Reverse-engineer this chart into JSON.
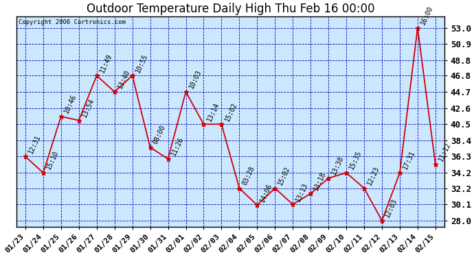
{
  "title": "Outdoor Temperature Daily High Thu Feb 16 00:00",
  "copyright": "Copyright 2006 Curtronics.com",
  "outer_bg": "#ffffff",
  "plot_bg_color": "#cce8ff",
  "line_color": "#cc0000",
  "marker_color": "#cc0000",
  "grid_color": "#0000bb",
  "x_labels": [
    "01/23",
    "01/24",
    "01/25",
    "01/26",
    "01/27",
    "01/28",
    "01/29",
    "01/30",
    "01/31",
    "02/01",
    "02/02",
    "02/03",
    "02/04",
    "02/05",
    "02/06",
    "02/07",
    "02/08",
    "02/09",
    "02/10",
    "02/11",
    "02/12",
    "02/13",
    "02/14",
    "02/15"
  ],
  "point_labels": [
    "12:31",
    "15:10",
    "10:46",
    "13:54",
    "11:49",
    "13:40",
    "10:55",
    "08:00",
    "11:26",
    "10:03",
    "13:14",
    "15:02",
    "03:28",
    "14:06",
    "15:02",
    "13:13",
    "13:18",
    "13:38",
    "15:35",
    "12:23",
    "12:03",
    "17:31",
    "16:00",
    "11:12"
  ],
  "values": [
    36.3,
    34.2,
    41.5,
    41.0,
    46.8,
    44.7,
    46.8,
    37.5,
    36.0,
    44.7,
    40.5,
    40.5,
    32.2,
    30.0,
    32.2,
    30.1,
    31.5,
    33.5,
    34.2,
    32.2,
    28.0,
    34.2,
    53.0,
    35.3
  ],
  "ylim_min": 27.2,
  "ylim_max": 54.5,
  "yticks": [
    28.0,
    30.1,
    32.2,
    34.2,
    36.3,
    38.4,
    40.5,
    42.6,
    44.7,
    46.8,
    48.8,
    50.9,
    53.0
  ],
  "title_fontsize": 12,
  "tick_fontsize": 8,
  "point_label_fontsize": 7
}
